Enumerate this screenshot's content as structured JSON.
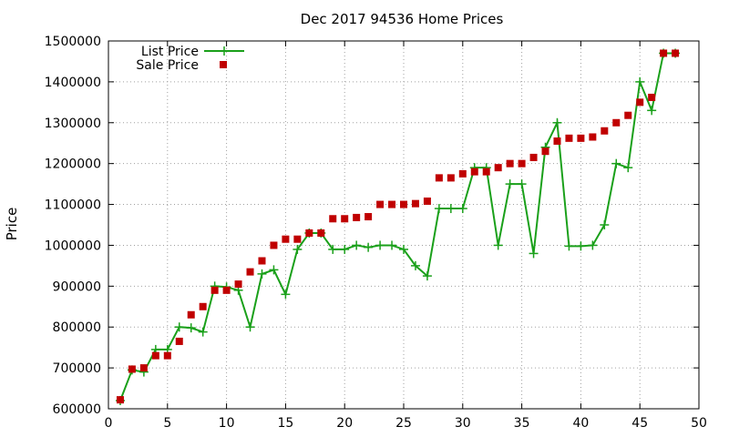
{
  "chart_data": {
    "type": "line",
    "title": "Dec 2017 94536 Home Prices",
    "xlabel": "",
    "ylabel": "Price",
    "xlim": [
      0,
      50
    ],
    "ylim": [
      600000,
      1500000
    ],
    "x_ticks": [
      0,
      5,
      10,
      15,
      20,
      25,
      30,
      35,
      40,
      45,
      50
    ],
    "y_ticks": [
      600000,
      700000,
      800000,
      900000,
      1000000,
      1100000,
      1200000,
      1300000,
      1400000,
      1500000
    ],
    "grid": true,
    "legend_position": "top-left",
    "series": [
      {
        "name": "List Price",
        "style": "line-with-plus-markers",
        "color": "#1aa01a",
        "x": [
          1,
          2,
          3,
          4,
          5,
          6,
          7,
          8,
          9,
          10,
          11,
          12,
          13,
          14,
          15,
          16,
          17,
          18,
          19,
          20,
          21,
          22,
          23,
          24,
          25,
          26,
          27,
          28,
          29,
          30,
          31,
          32,
          33,
          34,
          35,
          36,
          37,
          38,
          39,
          40,
          41,
          42,
          43,
          44,
          45,
          46,
          47,
          48
        ],
        "values": [
          620000,
          695000,
          690000,
          745000,
          745000,
          800000,
          798000,
          788000,
          900000,
          898000,
          890000,
          800000,
          930000,
          940000,
          880000,
          990000,
          1030000,
          1030000,
          990000,
          990000,
          1000000,
          995000,
          1000000,
          1000000,
          990000,
          950000,
          925000,
          1090000,
          1090000,
          1090000,
          1190000,
          1190000,
          1000000,
          1150000,
          1150000,
          980000,
          1240000,
          1300000,
          998000,
          998000,
          1000000,
          1050000,
          1200000,
          1190000,
          1400000,
          1330000,
          1470000,
          1470000
        ]
      },
      {
        "name": "Sale Price",
        "style": "square-markers",
        "color": "#c00000",
        "x": [
          1,
          2,
          3,
          4,
          5,
          6,
          7,
          8,
          9,
          10,
          11,
          12,
          13,
          14,
          15,
          16,
          17,
          18,
          19,
          20,
          21,
          22,
          23,
          24,
          25,
          26,
          27,
          28,
          29,
          30,
          31,
          32,
          33,
          34,
          35,
          36,
          37,
          38,
          39,
          40,
          41,
          42,
          43,
          44,
          45,
          46,
          47,
          48
        ],
        "values": [
          622000,
          697000,
          700000,
          730000,
          730000,
          765000,
          830000,
          850000,
          890000,
          890000,
          905000,
          935000,
          962000,
          1000000,
          1015000,
          1015000,
          1030000,
          1030000,
          1065000,
          1065000,
          1068000,
          1070000,
          1100000,
          1100000,
          1100000,
          1102000,
          1108000,
          1165000,
          1165000,
          1175000,
          1180000,
          1180000,
          1190000,
          1200000,
          1200000,
          1215000,
          1230000,
          1255000,
          1262000,
          1262000,
          1265000,
          1280000,
          1300000,
          1318000,
          1350000,
          1362000,
          1470000,
          1470000
        ]
      }
    ]
  }
}
